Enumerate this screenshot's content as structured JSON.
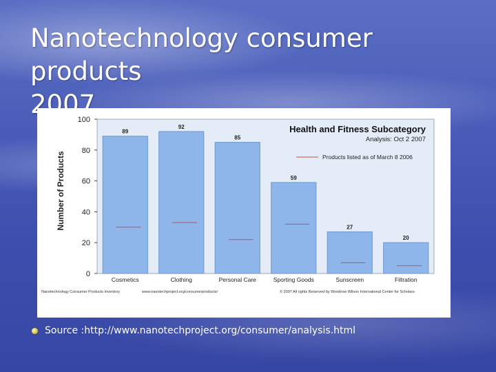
{
  "slide": {
    "title_line1": "Nanotechnology consumer products",
    "title_line2": "2007",
    "footnote": "Source :http://www.nanotechproject.org/consumer/analysis.html"
  },
  "colors": {
    "bar": "#8fb6ea",
    "bar_stroke": "#6f97cf",
    "plot_bg": "#e3ecf7",
    "marker": "#d24a4a"
  },
  "chart_data": {
    "type": "bar",
    "title": "Health and Fitness Subcategory",
    "subtitle": "Analysis: Oct 2 2007",
    "ylabel": "Number of Products",
    "xlabel": "",
    "ylim": [
      0,
      100
    ],
    "yticks": [
      "0",
      "20",
      "40",
      "60",
      "80",
      "100"
    ],
    "ytick_values": [
      0,
      20,
      40,
      60,
      80,
      100
    ],
    "categories": [
      "Cosmetics",
      "Clothing",
      "Personal Care",
      "Sporting Goods",
      "Sunscreen",
      "Filtration"
    ],
    "values": [
      89,
      92,
      85,
      59,
      27,
      20
    ],
    "data_labels": [
      "89",
      "92",
      "85",
      "59",
      "27",
      "20"
    ],
    "series": [
      {
        "name": "",
        "values": [
          89,
          92,
          85,
          59,
          27,
          20
        ]
      },
      {
        "name": "Products listed as of March 8 2006",
        "values": [
          30,
          33,
          22,
          32,
          7,
          5
        ]
      }
    ],
    "legend": {
      "label": "Products listed as of March 8 2006",
      "placement": "top-right"
    },
    "footer_left": "Nanotechnology Consumer Products Inventory",
    "footer_mid": "www.nanotechproject.org/consumerproducts/",
    "footer_right": "© 2007 All rights Reserved by Woodrow Wilson International Center for Scholars",
    "grid": false
  }
}
